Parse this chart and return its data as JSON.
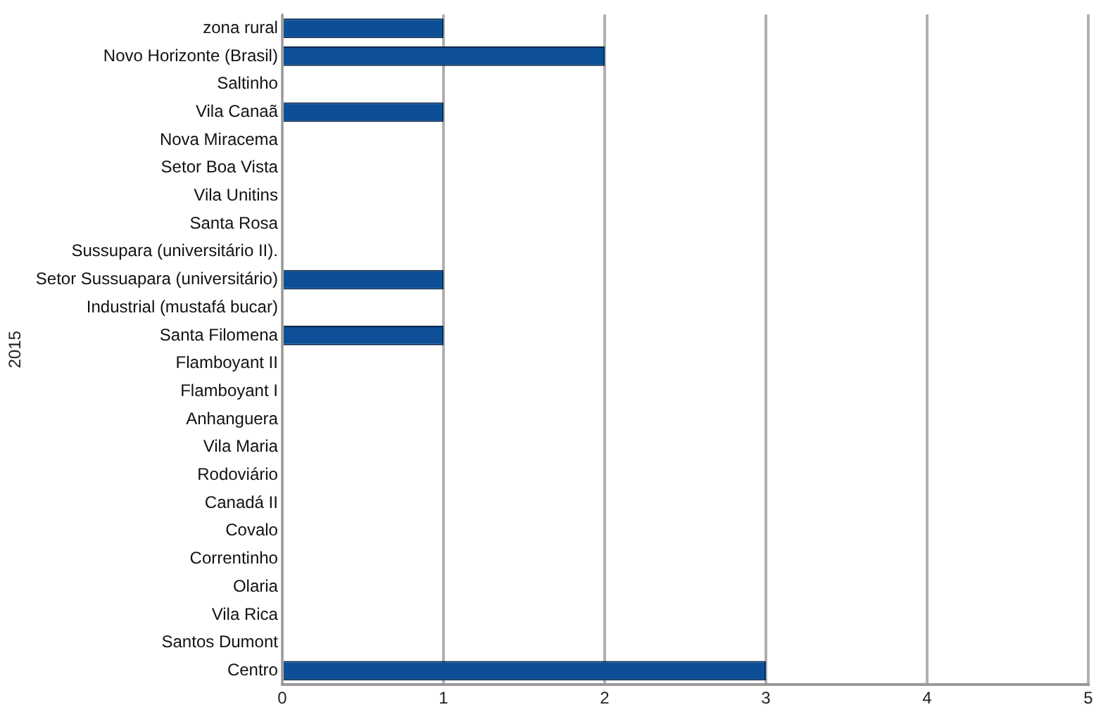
{
  "chart_data": {
    "type": "bar",
    "orientation": "horizontal",
    "ylabel": "2015",
    "categories": [
      "zona rural",
      "Novo Horizonte (Brasil)",
      "Saltinho",
      "Vila Canaã",
      "Nova Miracema",
      "Setor Boa Vista",
      "Vila Unitins",
      "Santa Rosa",
      "Sussupara (universitário II).",
      "Setor Sussuapara (universitário)",
      "Industrial (mustafá bucar)",
      "Santa Filomena",
      "Flamboyant II",
      "Flamboyant I",
      "Anhanguera",
      "Vila Maria",
      "Rodoviário",
      "Canadá II",
      "Covalo",
      "Correntinho",
      "Olaria",
      "Vila Rica",
      "Santos Dumont",
      "Centro"
    ],
    "values": [
      1,
      2,
      0,
      1,
      0,
      0,
      0,
      0,
      0,
      1,
      0,
      1,
      0,
      0,
      0,
      0,
      0,
      0,
      0,
      0,
      0,
      0,
      0,
      3
    ],
    "color": "#0d4f96",
    "xlim": [
      0,
      5
    ],
    "xticks": [
      0,
      1,
      2,
      3,
      4,
      5
    ],
    "grid": "x",
    "legend": false
  }
}
